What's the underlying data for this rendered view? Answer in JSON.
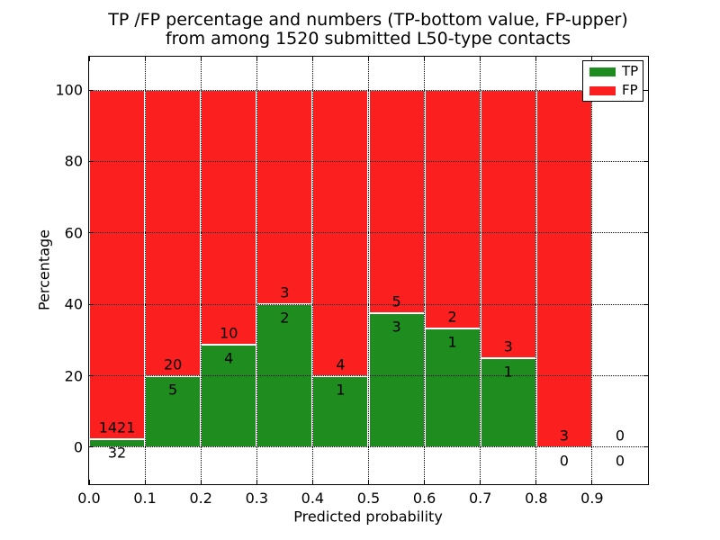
{
  "chart_data": {
    "type": "bar",
    "stacked": true,
    "title_line1": "TP /FP percentage and numbers (TP-bottom value, FP-upper)",
    "title_line2": "from among 1520 submitted L50-type contacts",
    "xlabel": "Predicted probability",
    "ylabel": "Percentage",
    "xlim": [
      0.0,
      1.0
    ],
    "ylim": [
      -10.33,
      109.33
    ],
    "bin_width": 0.1,
    "bins": [
      0.0,
      0.1,
      0.2,
      0.3,
      0.4,
      0.5,
      0.6,
      0.7,
      0.8,
      0.9
    ],
    "series": [
      {
        "name": "TP",
        "color": "#1e8c1e",
        "counts": [
          32,
          5,
          4,
          2,
          1,
          3,
          1,
          1,
          0,
          0
        ],
        "pct": [
          2.2,
          20.0,
          28.6,
          40.0,
          20.0,
          37.5,
          33.3,
          25.0,
          0.0,
          0.0
        ]
      },
      {
        "name": "FP",
        "color": "#fb1f1f",
        "counts": [
          1421,
          20,
          10,
          3,
          4,
          5,
          2,
          3,
          3,
          0
        ],
        "pct": [
          97.8,
          80.0,
          71.4,
          60.0,
          80.0,
          62.5,
          66.7,
          75.0,
          100.0,
          0.0
        ]
      }
    ],
    "total_submitted": 1520,
    "yticks": [
      {
        "label": "0",
        "value": 0
      },
      {
        "label": "20",
        "value": 20
      },
      {
        "label": "40",
        "value": 40
      },
      {
        "label": "60",
        "value": 60
      },
      {
        "label": "80",
        "value": 80
      },
      {
        "label": "100",
        "value": 100
      }
    ],
    "xticks": [
      {
        "label": "0.0",
        "value": 0.0
      },
      {
        "label": "0.1",
        "value": 0.1
      },
      {
        "label": "0.2",
        "value": 0.2
      },
      {
        "label": "0.3",
        "value": 0.3
      },
      {
        "label": "0.4",
        "value": 0.4
      },
      {
        "label": "0.5",
        "value": 0.5
      },
      {
        "label": "0.6",
        "value": 0.6
      },
      {
        "label": "0.7",
        "value": 0.7
      },
      {
        "label": "0.8",
        "value": 0.8
      },
      {
        "label": "0.9",
        "value": 0.9
      }
    ],
    "grid": true,
    "grid_style": "dotted",
    "legend_position": "upper right",
    "bar_edge_color": "#ffffff",
    "text_color": "#000000"
  }
}
